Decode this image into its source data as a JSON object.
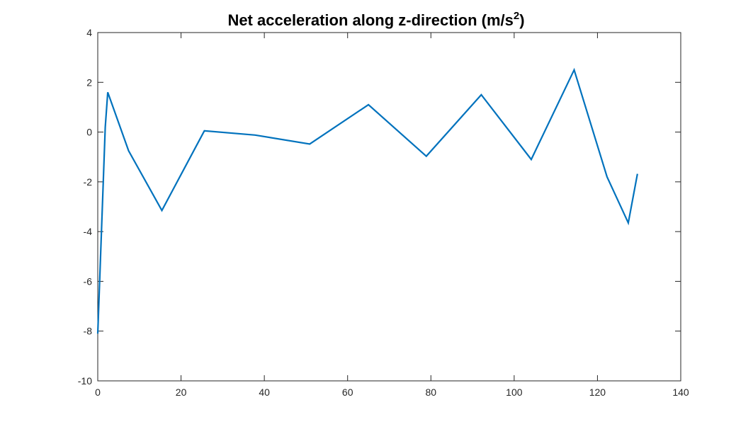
{
  "chart_data": {
    "type": "line",
    "title": "Net acceleration along z-direction (m/s",
    "title_superscript": "2",
    "title_suffix": ")",
    "xlabel": "",
    "ylabel": "",
    "xlim": [
      0,
      140
    ],
    "ylim": [
      -10,
      4
    ],
    "xticks": [
      0,
      20,
      40,
      60,
      80,
      100,
      120,
      140
    ],
    "yticks": [
      -10,
      -8,
      -6,
      -4,
      -2,
      0,
      2,
      4
    ],
    "grid": false,
    "box": true,
    "series": [
      {
        "color": "#0072BD",
        "x": [
          0,
          1.8,
          2.4,
          7.4,
          15.4,
          25.6,
          37.8,
          50.9,
          65,
          78.9,
          92.1,
          104.1,
          114.4,
          122.3,
          127.4,
          129.6
        ],
        "y": [
          -8.1,
          0.2,
          1.6,
          -0.75,
          -3.15,
          0.05,
          -0.12,
          -0.48,
          1.1,
          -0.97,
          1.5,
          -1.1,
          2.5,
          -1.8,
          -3.65,
          -1.68
        ]
      }
    ]
  }
}
